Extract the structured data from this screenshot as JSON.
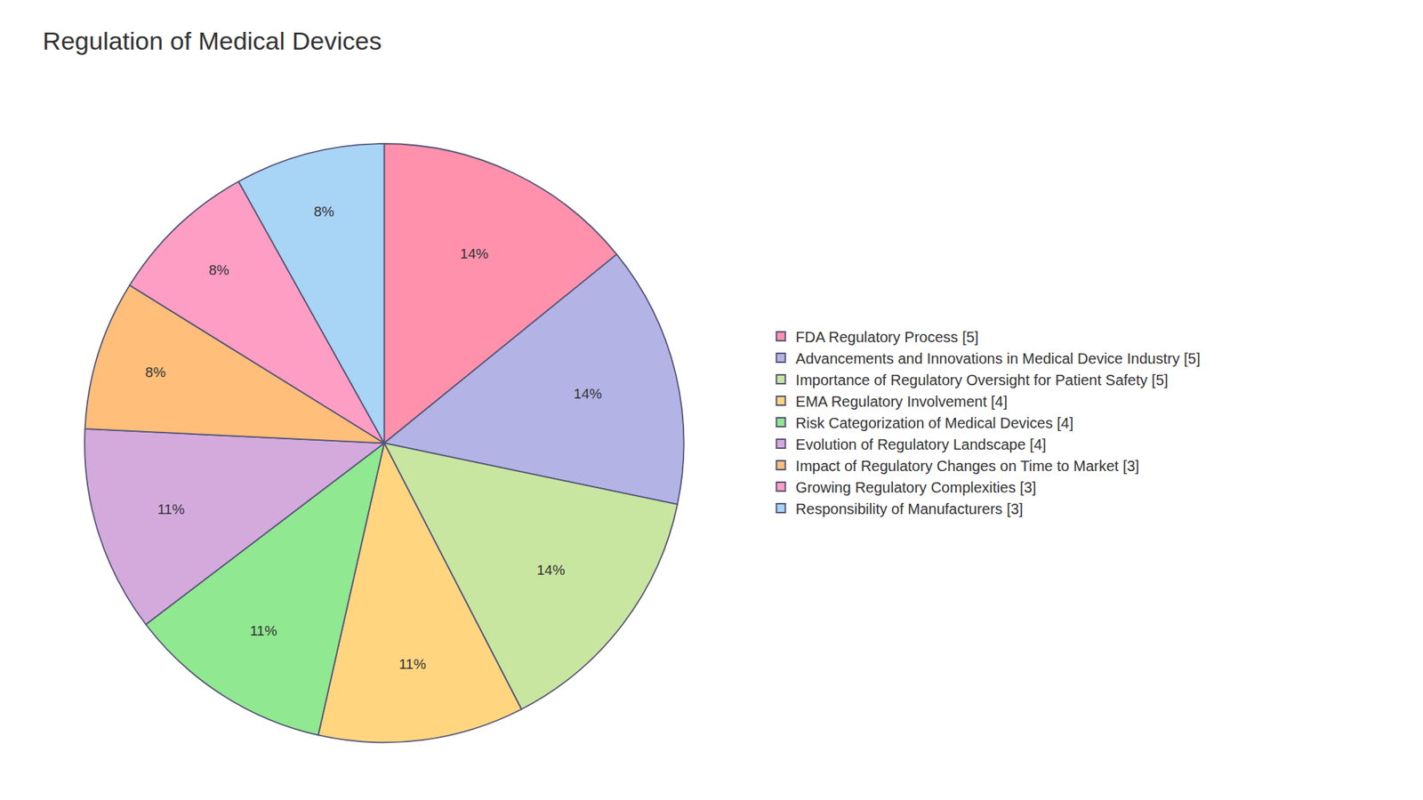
{
  "chart_data": {
    "type": "pie",
    "title": "Regulation of Medical Devices",
    "categories": [
      "FDA Regulatory Process [5]",
      "Advancements and Innovations in Medical Device Industry [5]",
      "Importance of Regulatory Oversight for Patient Safety [5]",
      "EMA Regulatory Involvement [4]",
      "Risk Categorization of Medical Devices [4]",
      "Evolution of Regulatory Landscape [4]",
      "Impact of Regulatory Changes on Time to Market [3]",
      "Growing Regulatory Complexities [3]",
      "Responsibility of Manufacturers [3]"
    ],
    "values": [
      14,
      14,
      14,
      11,
      11,
      11,
      8,
      8,
      8
    ],
    "value_labels": [
      "14%",
      "14%",
      "14%",
      "11%",
      "11%",
      "11%",
      "8%",
      "8%",
      "8%"
    ],
    "colors": [
      "#FF91AC",
      "#B3B3E6",
      "#C8E6A0",
      "#FFD580",
      "#90E890",
      "#D4AADD",
      "#FFBE7A",
      "#FF9EC4",
      "#A8D4F5"
    ],
    "data_labels": true,
    "legend": "right"
  }
}
